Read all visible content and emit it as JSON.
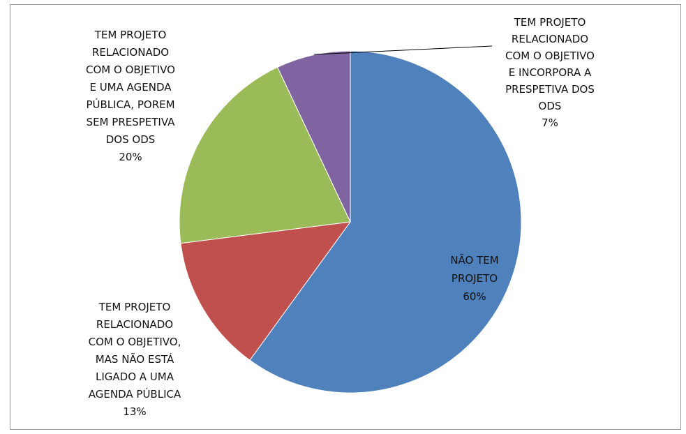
{
  "chart_data": {
    "type": "pie",
    "title": "",
    "legend": "none",
    "slices": [
      {
        "label_lines": [
          "NÃO TEM",
          "PROJETO",
          "60%"
        ],
        "value": 60,
        "color": "#4F81BD"
      },
      {
        "label_lines": [
          "TEM PROJETO",
          "RELACIONADO",
          "COM O OBJETIVO,",
          "MAS NÃO ESTÁ",
          "LIGADO A UMA",
          "AGENDA PÚBLICA",
          "13%"
        ],
        "value": 13,
        "color": "#C0504D"
      },
      {
        "label_lines": [
          "TEM PROJETO",
          "RELACIONADO",
          "COM O OBJETIVO",
          "E UMA AGENDA",
          "PÚBLICA, POREM",
          "SEM PRESPETIVA",
          "DOS ODS",
          "20%"
        ],
        "value": 20,
        "color": "#9BBB59"
      },
      {
        "label_lines": [
          "TEM PROJETO",
          "RELACIONADO",
          "COM O OBJETIVO",
          "E INCORPORA A",
          "PRESPETIVA DOS",
          "ODS",
          "7%"
        ],
        "value": 7,
        "color": "#8064A2"
      }
    ]
  }
}
